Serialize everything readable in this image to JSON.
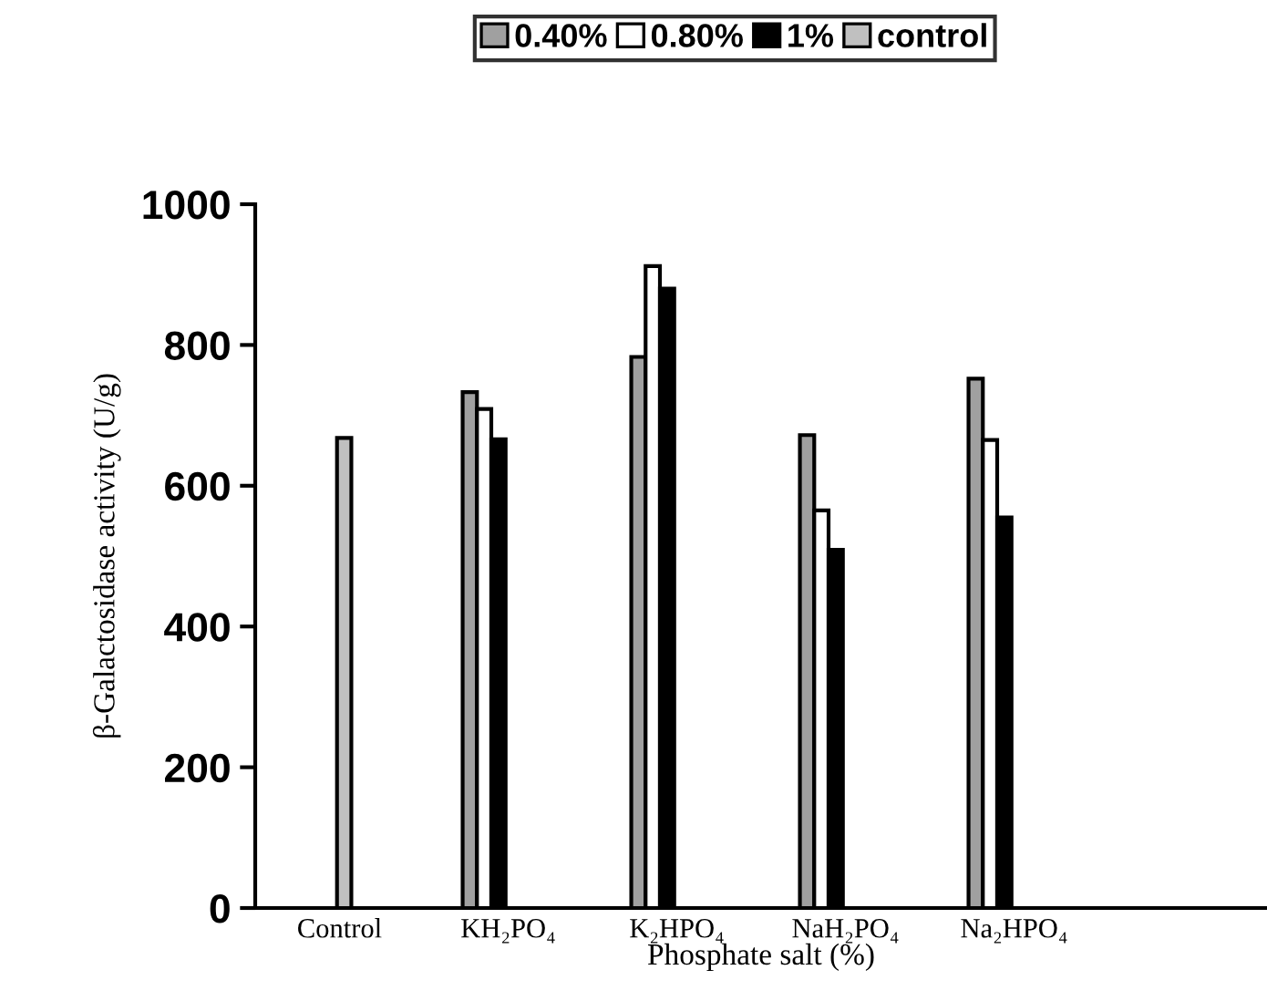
{
  "chart_data": {
    "type": "bar",
    "xlabel": "Phosphate salt (%)",
    "ylabel": "β-Galactosidase activity (U/g)",
    "categories": [
      "Control",
      "KH₂PO₄",
      "K₂HPO₄",
      "NaH₂PO₄",
      "Na₂HPO₄",
      null
    ],
    "series": [
      {
        "name": "0.40%",
        "color": "#a0a0a0",
        "values": [
          null,
          733,
          783,
          672,
          752,
          null
        ]
      },
      {
        "name": "0.80%",
        "color": "#ffffff",
        "values": [
          null,
          709,
          912,
          565,
          665,
          null
        ]
      },
      {
        "name": "1%",
        "color": "#000000",
        "values": [
          null,
          666,
          880,
          509,
          555,
          null
        ]
      },
      {
        "name": "control",
        "color": "#c0c0c0",
        "values": [
          668,
          null,
          null,
          null,
          null,
          null
        ]
      }
    ],
    "ylim": [
      0,
      1000
    ],
    "yticks": [
      0,
      200,
      400,
      600,
      800,
      1000
    ],
    "grid": false,
    "legend": "top"
  }
}
